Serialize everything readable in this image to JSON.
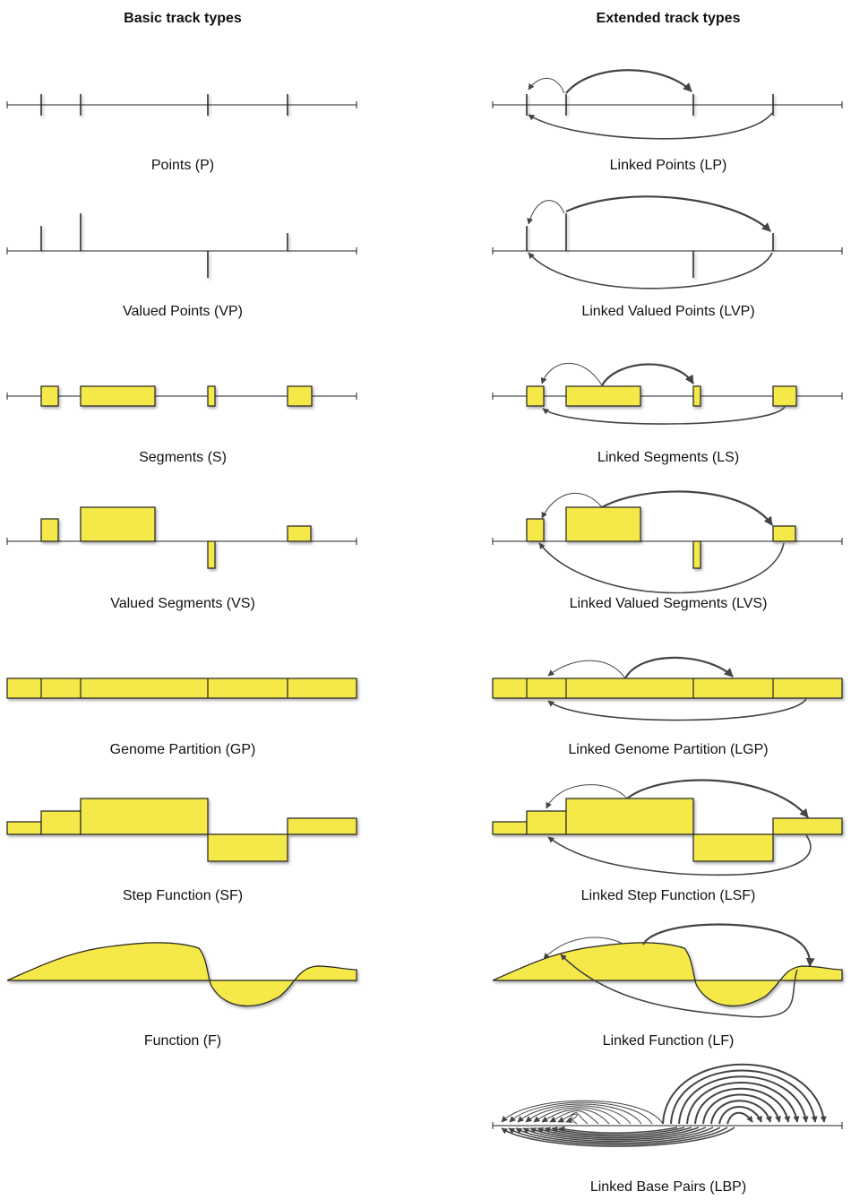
{
  "headings": {
    "basic": "Basic track types",
    "extended": "Extended track types"
  },
  "basic": [
    {
      "id": "P",
      "label": "Points (P)"
    },
    {
      "id": "VP",
      "label": "Valued Points (VP)"
    },
    {
      "id": "S",
      "label": "Segments (S)"
    },
    {
      "id": "VS",
      "label": "Valued Segments (VS)"
    },
    {
      "id": "GP",
      "label": "Genome Partition (GP)"
    },
    {
      "id": "SF",
      "label": "Step Function (SF)"
    },
    {
      "id": "F",
      "label": "Function (F)"
    }
  ],
  "extended": [
    {
      "id": "LP",
      "label": "Linked Points (LP)"
    },
    {
      "id": "LVP",
      "label": "Linked Valued Points (LVP)"
    },
    {
      "id": "LS",
      "label": "Linked Segments (LS)"
    },
    {
      "id": "LVS",
      "label": "Linked Valued Segments (LVS)"
    },
    {
      "id": "LGP",
      "label": "Linked Genome Partition (LGP)"
    },
    {
      "id": "LSF",
      "label": "Linked Step Function (LSF)"
    },
    {
      "id": "LF",
      "label": "Linked Function (LF)"
    },
    {
      "id": "LBP",
      "label": "Linked Base Pairs (LBP)"
    }
  ],
  "colors": {
    "fill": "#f5e94a",
    "stroke": "#222222",
    "arrow": "#444444"
  }
}
